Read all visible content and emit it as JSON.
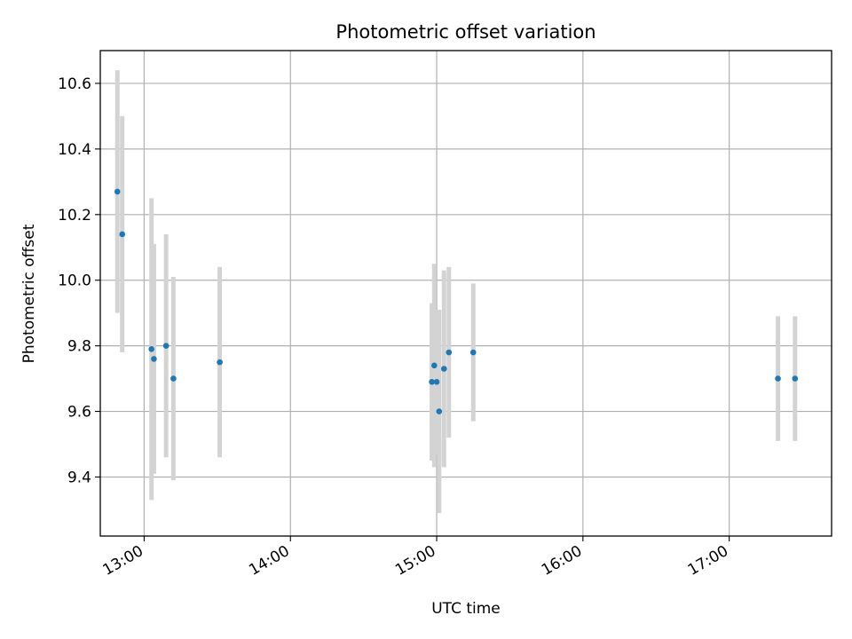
{
  "chart_data": {
    "type": "scatter",
    "title": "Photometric offset variation",
    "xlabel": "UTC time",
    "ylabel": "Photometric offset",
    "xlim": [
      "12:42",
      "17:42"
    ],
    "ylim": [
      9.22,
      10.7
    ],
    "xticks": [
      "13:00",
      "14:00",
      "15:00",
      "16:00",
      "17:00"
    ],
    "yticks": [
      9.4,
      9.6,
      9.8,
      10.0,
      10.2,
      10.4,
      10.6
    ],
    "grid": true,
    "colors": {
      "point": "#1f77b4",
      "errorbar": "#d3d3d3"
    },
    "points": [
      {
        "x": "12:49",
        "y": 10.27,
        "err": 0.37
      },
      {
        "x": "12:51",
        "y": 10.14,
        "err": 0.36
      },
      {
        "x": "13:03",
        "y": 9.79,
        "err": 0.46
      },
      {
        "x": "13:04",
        "y": 9.76,
        "err": 0.35
      },
      {
        "x": "13:09",
        "y": 9.8,
        "err": 0.34
      },
      {
        "x": "13:12",
        "y": 9.7,
        "err": 0.31
      },
      {
        "x": "13:31",
        "y": 9.75,
        "err": 0.29
      },
      {
        "x": "14:58",
        "y": 9.69,
        "err": 0.24
      },
      {
        "x": "14:59",
        "y": 9.74,
        "err": 0.31
      },
      {
        "x": "15:00",
        "y": 9.69,
        "err": 0.22
      },
      {
        "x": "15:01",
        "y": 9.6,
        "err": 0.31
      },
      {
        "x": "15:03",
        "y": 9.73,
        "err": 0.3
      },
      {
        "x": "15:05",
        "y": 9.78,
        "err": 0.26
      },
      {
        "x": "15:15",
        "y": 9.78,
        "err": 0.21
      },
      {
        "x": "17:20",
        "y": 9.7,
        "err": 0.19
      },
      {
        "x": "17:27",
        "y": 9.7,
        "err": 0.19
      }
    ]
  }
}
